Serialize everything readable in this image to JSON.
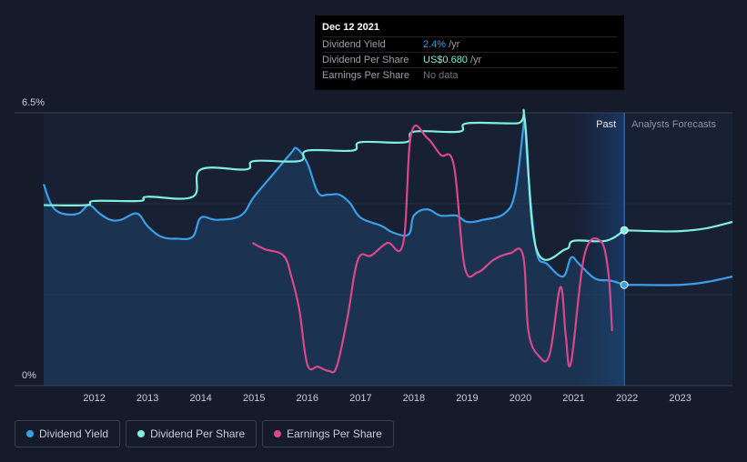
{
  "tooltip": {
    "date": "Dec 12 2021",
    "rows": [
      {
        "label": "Dividend Yield",
        "value": "2.4%",
        "unit": "/yr"
      },
      {
        "label": "Dividend Per Share",
        "value": "US$0.680",
        "unit": "/yr"
      },
      {
        "label": "Earnings Per Share",
        "value": "No data",
        "unit": ""
      }
    ]
  },
  "regions": {
    "past": "Past",
    "forecast": "Analysts Forecasts"
  },
  "legend": [
    {
      "label": "Dividend Yield",
      "color": "#3a9fe6"
    },
    {
      "label": "Dividend Per Share",
      "color": "#7ff0dd"
    },
    {
      "label": "Earnings Per Share",
      "color": "#d9488c"
    }
  ],
  "chart_data": {
    "type": "line",
    "y_top_label": "6.5%",
    "y_bottom_label": "0%",
    "ylim": [
      0,
      6.5
    ],
    "xlim": [
      2011.05,
      2023.98
    ],
    "x_ticks": [
      2012,
      2013,
      2014,
      2015,
      2016,
      2017,
      2018,
      2019,
      2020,
      2021,
      2022,
      2023
    ],
    "past_end": 2021.95,
    "highlight_start": 2020.95,
    "series": [
      {
        "name": "Dividend Yield",
        "color": "#3a9fe6",
        "unit": "%",
        "points": [
          [
            2011.05,
            4.8
          ],
          [
            2011.2,
            4.3
          ],
          [
            2011.4,
            4.1
          ],
          [
            2011.7,
            4.1
          ],
          [
            2011.9,
            4.3
          ],
          [
            2012.1,
            4.1
          ],
          [
            2012.3,
            3.95
          ],
          [
            2012.5,
            3.95
          ],
          [
            2012.8,
            4.1
          ],
          [
            2013.0,
            3.8
          ],
          [
            2013.25,
            3.55
          ],
          [
            2013.55,
            3.5
          ],
          [
            2013.85,
            3.55
          ],
          [
            2014.0,
            4.0
          ],
          [
            2014.3,
            3.95
          ],
          [
            2014.75,
            4.05
          ],
          [
            2015.0,
            4.5
          ],
          [
            2015.4,
            5.1
          ],
          [
            2015.7,
            5.55
          ],
          [
            2015.8,
            5.65
          ],
          [
            2016.0,
            5.3
          ],
          [
            2016.2,
            4.6
          ],
          [
            2016.4,
            4.55
          ],
          [
            2016.6,
            4.55
          ],
          [
            2016.8,
            4.35
          ],
          [
            2017.0,
            4.0
          ],
          [
            2017.4,
            3.8
          ],
          [
            2017.6,
            3.65
          ],
          [
            2017.9,
            3.6
          ],
          [
            2018.0,
            4.05
          ],
          [
            2018.25,
            4.2
          ],
          [
            2018.5,
            4.05
          ],
          [
            2018.8,
            4.05
          ],
          [
            2019.0,
            3.9
          ],
          [
            2019.3,
            3.95
          ],
          [
            2019.7,
            4.1
          ],
          [
            2019.9,
            4.6
          ],
          [
            2020.05,
            6.1
          ],
          [
            2020.08,
            6.35
          ],
          [
            2020.15,
            5.0
          ],
          [
            2020.3,
            3.2
          ],
          [
            2020.5,
            2.9
          ],
          [
            2020.8,
            2.6
          ],
          [
            2020.95,
            3.05
          ],
          [
            2021.1,
            2.9
          ],
          [
            2021.4,
            2.55
          ],
          [
            2021.7,
            2.5
          ],
          [
            2021.95,
            2.4
          ],
          [
            2022.2,
            2.4
          ],
          [
            2023.0,
            2.4
          ],
          [
            2023.5,
            2.47
          ],
          [
            2023.98,
            2.6
          ]
        ]
      },
      {
        "name": "Dividend Per Share",
        "color": "#7ff0dd",
        "unit": "US$",
        "points": [
          [
            2011.05,
            4.3
          ],
          [
            2011.85,
            4.3
          ],
          [
            2012.0,
            4.4
          ],
          [
            2012.85,
            4.4
          ],
          [
            2013.0,
            4.5
          ],
          [
            2013.85,
            4.5
          ],
          [
            2014.0,
            5.15
          ],
          [
            2014.85,
            5.15
          ],
          [
            2015.0,
            5.35
          ],
          [
            2015.85,
            5.35
          ],
          [
            2016.0,
            5.6
          ],
          [
            2016.85,
            5.6
          ],
          [
            2017.0,
            5.8
          ],
          [
            2017.85,
            5.8
          ],
          [
            2018.0,
            6.05
          ],
          [
            2018.85,
            6.05
          ],
          [
            2019.0,
            6.25
          ],
          [
            2019.95,
            6.25
          ],
          [
            2020.08,
            6.35
          ],
          [
            2020.3,
            3.25
          ],
          [
            2020.85,
            3.25
          ],
          [
            2021.0,
            3.45
          ],
          [
            2021.6,
            3.45
          ],
          [
            2021.95,
            3.7
          ],
          [
            2022.5,
            3.68
          ],
          [
            2023.0,
            3.68
          ],
          [
            2023.5,
            3.75
          ],
          [
            2023.98,
            3.9
          ]
        ]
      },
      {
        "name": "Earnings Per Share",
        "color": "#d9488c",
        "unit": "",
        "points": [
          [
            2014.97,
            3.4
          ],
          [
            2015.2,
            3.25
          ],
          [
            2015.55,
            3.1
          ],
          [
            2015.7,
            2.6
          ],
          [
            2015.85,
            1.8
          ],
          [
            2016.0,
            0.5
          ],
          [
            2016.2,
            0.45
          ],
          [
            2016.4,
            0.35
          ],
          [
            2016.55,
            0.45
          ],
          [
            2016.75,
            1.6
          ],
          [
            2016.95,
            3.0
          ],
          [
            2017.2,
            3.1
          ],
          [
            2017.5,
            3.4
          ],
          [
            2017.8,
            3.4
          ],
          [
            2017.95,
            6.0
          ],
          [
            2018.25,
            5.9
          ],
          [
            2018.5,
            5.5
          ],
          [
            2018.75,
            5.25
          ],
          [
            2018.95,
            2.85
          ],
          [
            2019.2,
            2.7
          ],
          [
            2019.5,
            3.0
          ],
          [
            2019.8,
            3.15
          ],
          [
            2020.05,
            3.1
          ],
          [
            2020.15,
            1.3
          ],
          [
            2020.35,
            0.7
          ],
          [
            2020.55,
            0.75
          ],
          [
            2020.75,
            2.35
          ],
          [
            2020.85,
            1.2
          ],
          [
            2020.95,
            0.55
          ],
          [
            2021.2,
            3.1
          ],
          [
            2021.5,
            3.45
          ],
          [
            2021.65,
            2.7
          ],
          [
            2021.72,
            1.3
          ]
        ]
      }
    ]
  }
}
